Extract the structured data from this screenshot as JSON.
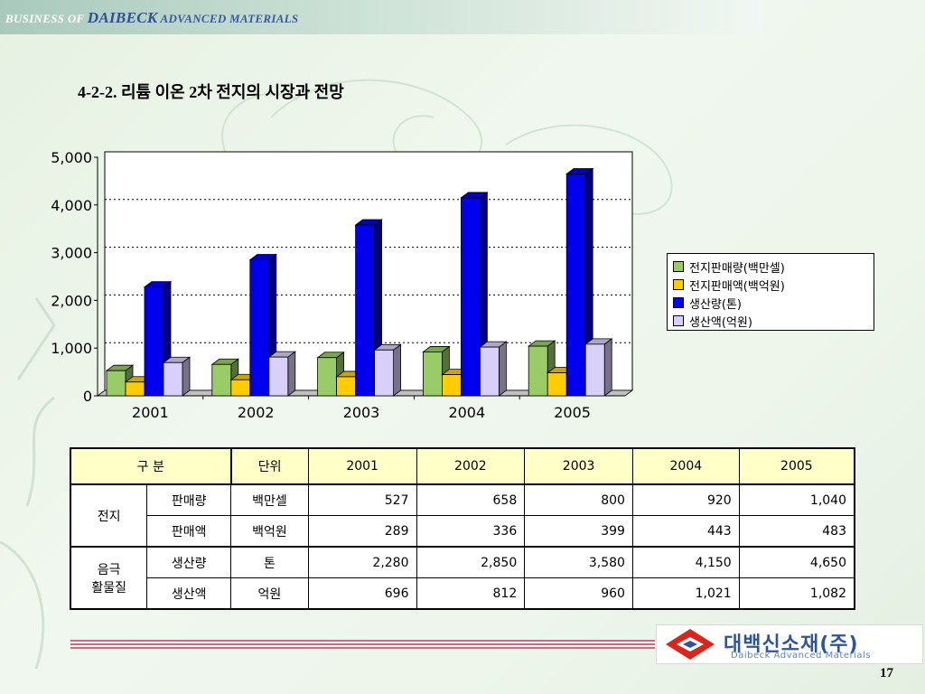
{
  "header": {
    "brand_part1": "BUSINESS OF ",
    "brand_part2": "DAIBECK",
    "brand_part3": " ADVANCED MATERIALS"
  },
  "page_title": "4-2-2. 리튬 이온 2차 전지의 시장과 전망",
  "chart_data": {
    "type": "bar",
    "categories": [
      "2001",
      "2002",
      "2003",
      "2004",
      "2005"
    ],
    "series": [
      {
        "name": "전지판매량(백만셀)",
        "values": [
          527,
          658,
          800,
          920,
          1040
        ],
        "color": "#99cc66"
      },
      {
        "name": "전지판매액(백억원)",
        "values": [
          289,
          336,
          399,
          443,
          483
        ],
        "color": "#ffcc00"
      },
      {
        "name": "생산량(톤)",
        "values": [
          2280,
          2850,
          3580,
          4150,
          4650
        ],
        "color": "#0000ee"
      },
      {
        "name": "생산액(억원)",
        "values": [
          696,
          812,
          960,
          1021,
          1082
        ],
        "color": "#d8d0f8"
      }
    ],
    "ylim": [
      0,
      5000
    ],
    "yticks": [
      "0",
      "1,000",
      "2,000",
      "3,000",
      "4,000",
      "5,000"
    ],
    "grid": true,
    "legend_position": "right"
  },
  "table": {
    "headers": [
      "구      분",
      "단위",
      "2001",
      "2002",
      "2003",
      "2004",
      "2005"
    ],
    "group1_label": "전지",
    "group2_label_line1": "음극",
    "group2_label_line2": "활물질",
    "rows": [
      {
        "item": "판매량",
        "unit": "백만셀",
        "values": [
          "527",
          "658",
          "800",
          "920",
          "1,040"
        ]
      },
      {
        "item": "판매액",
        "unit": "백억원",
        "values": [
          "289",
          "336",
          "399",
          "443",
          "483"
        ]
      },
      {
        "item": "생산량",
        "unit": "톤",
        "values": [
          "2,280",
          "2,850",
          "3,580",
          "4,150",
          "4,650"
        ]
      },
      {
        "item": "생산액",
        "unit": "억원",
        "values": [
          "696",
          "812",
          "960",
          "1,021",
          "1,082"
        ]
      }
    ]
  },
  "logo": {
    "name": "대백신소재(주)",
    "sub": "Daibeck Advanced Materials"
  },
  "page_number": "17"
}
